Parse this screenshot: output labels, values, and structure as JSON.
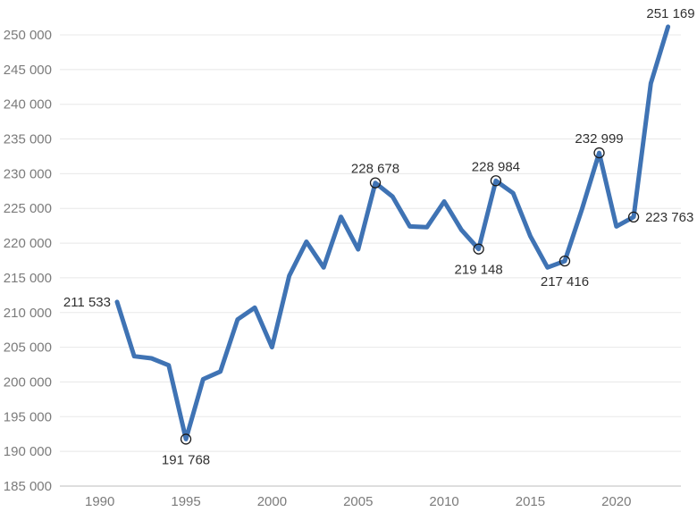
{
  "chart_data": {
    "type": "line",
    "title": "",
    "xlabel": "",
    "ylabel": "",
    "legend": "none",
    "grid": "horizontal-only",
    "xlim": [
      1987.7,
      2024.4
    ],
    "ylim": [
      185000,
      252500
    ],
    "x": [
      1991,
      1992,
      1993,
      1994,
      1995,
      1996,
      1997,
      1998,
      1999,
      2000,
      2001,
      2002,
      2003,
      2004,
      2005,
      2006,
      2007,
      2008,
      2009,
      2010,
      2011,
      2012,
      2013,
      2014,
      2015,
      2016,
      2017,
      2018,
      2019,
      2020,
      2021,
      2022,
      2023
    ],
    "values": [
      211533,
      203700,
      203400,
      202400,
      191768,
      200400,
      201500,
      209000,
      210700,
      205000,
      215300,
      220200,
      216500,
      223800,
      219100,
      228678,
      226700,
      222400,
      222300,
      226000,
      221900,
      219148,
      228984,
      227200,
      221000,
      216500,
      217416,
      224900,
      232999,
      222400,
      223763,
      243000,
      251169
    ],
    "annotated_points": [
      {
        "year": 1991,
        "value": 211533,
        "label": "211 533",
        "marker": false,
        "label_position": "left"
      },
      {
        "year": 1995,
        "value": 191768,
        "label": "191 768",
        "marker": true,
        "label_position": "below"
      },
      {
        "year": 2006,
        "value": 228678,
        "label": "228 678",
        "marker": true,
        "label_position": "above"
      },
      {
        "year": 2012,
        "value": 219148,
        "label": "219 148",
        "marker": true,
        "label_position": "below"
      },
      {
        "year": 2013,
        "value": 228984,
        "label": "228 984",
        "marker": true,
        "label_position": "above"
      },
      {
        "year": 2017,
        "value": 217416,
        "label": "217 416",
        "marker": true,
        "label_position": "below"
      },
      {
        "year": 2019,
        "value": 232999,
        "label": "232 999",
        "marker": true,
        "label_position": "above"
      },
      {
        "year": 2021,
        "value": 223763,
        "label": "223 763",
        "marker": true,
        "label_position": "right"
      },
      {
        "year": 2023,
        "value": 251169,
        "label": "251 169",
        "marker": false,
        "label_position": "above-end"
      }
    ],
    "x_ticks": [
      {
        "value": 1990,
        "label": "1990"
      },
      {
        "value": 1995,
        "label": "1995"
      },
      {
        "value": 2000,
        "label": "2000"
      },
      {
        "value": 2005,
        "label": "2005"
      },
      {
        "value": 2010,
        "label": "2010"
      },
      {
        "value": 2015,
        "label": "2015"
      },
      {
        "value": 2020,
        "label": "2020"
      }
    ],
    "y_ticks": [
      {
        "value": 185000,
        "label": "185 000"
      },
      {
        "value": 190000,
        "label": "190 000"
      },
      {
        "value": 195000,
        "label": "195 000"
      },
      {
        "value": 200000,
        "label": "200 000"
      },
      {
        "value": 205000,
        "label": "205 000"
      },
      {
        "value": 210000,
        "label": "210 000"
      },
      {
        "value": 215000,
        "label": "215 000"
      },
      {
        "value": 220000,
        "label": "220 000"
      },
      {
        "value": 225000,
        "label": "225 000"
      },
      {
        "value": 230000,
        "label": "230 000"
      },
      {
        "value": 235000,
        "label": "235 000"
      },
      {
        "value": 240000,
        "label": "240 000"
      },
      {
        "value": 245000,
        "label": "245 000"
      },
      {
        "value": 250000,
        "label": "250 000"
      }
    ],
    "colors": {
      "line": "#3F73B4",
      "marker_stroke": "#1c1c1c",
      "grid": "#e8e8e8",
      "baseline": "#bdbdbd",
      "tick_text": "#7b7b7b",
      "point_label_text": "#303030",
      "background": "#ffffff"
    }
  }
}
